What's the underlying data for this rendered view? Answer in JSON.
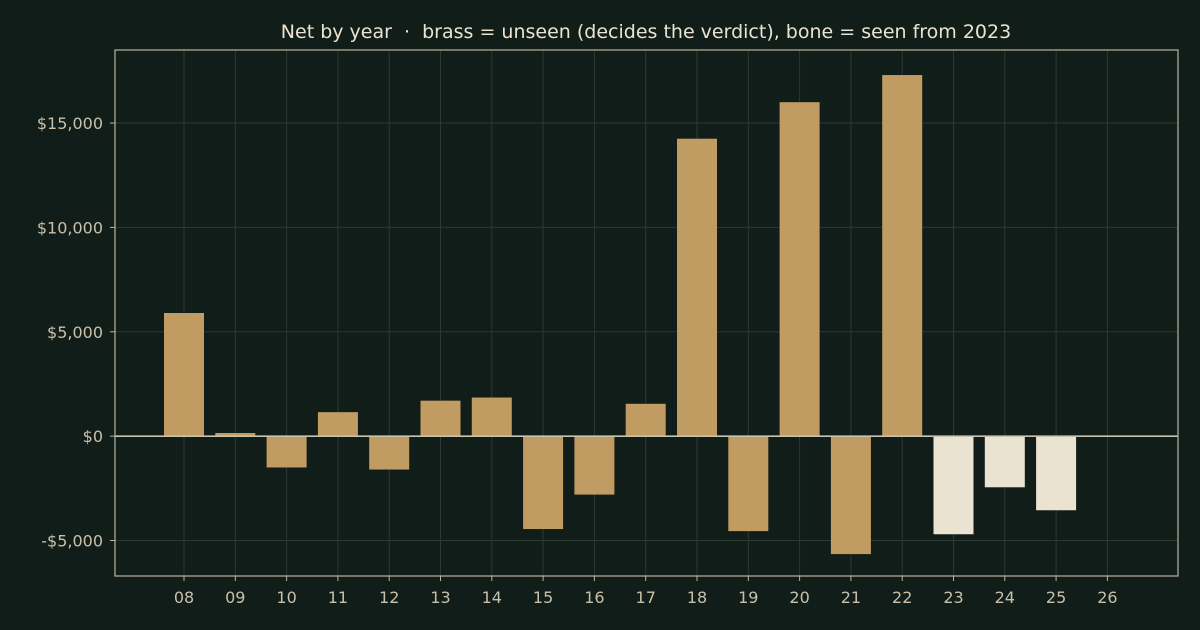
{
  "colors": {
    "background": "#111d18",
    "grid": "#2b3a32",
    "frame": "#b9b3a0",
    "zero_line": "#c8c2ae",
    "unseen_bar": "#c09c62",
    "seen_bar": "#ebe3d2",
    "text": "#ebe3d2",
    "tick_text": "#c9c0ab"
  },
  "chart_data": {
    "type": "bar",
    "title": "Net by year  ·  brass = unseen (decides the verdict), bone = seen from 2023",
    "xlabel": "",
    "ylabel": "",
    "categories": [
      "08",
      "09",
      "10",
      "11",
      "12",
      "13",
      "14",
      "15",
      "16",
      "17",
      "18",
      "19",
      "20",
      "21",
      "22",
      "23",
      "24",
      "25",
      "26"
    ],
    "values": [
      5900,
      150,
      -1500,
      1150,
      -1600,
      1700,
      1850,
      -4450,
      -2800,
      1550,
      14250,
      -4550,
      16000,
      -5650,
      17300,
      -4700,
      -2450,
      -3550,
      0
    ],
    "groups": [
      "unseen",
      "unseen",
      "unseen",
      "unseen",
      "unseen",
      "unseen",
      "unseen",
      "unseen",
      "unseen",
      "unseen",
      "unseen",
      "unseen",
      "unseen",
      "unseen",
      "unseen",
      "seen",
      "seen",
      "seen",
      "seen"
    ],
    "ylim": [
      -6700,
      18500
    ],
    "yticks": [
      -5000,
      0,
      5000,
      10000,
      15000
    ],
    "ytick_labels": [
      "-$5,000",
      "$0",
      "$5,000",
      "$10,000",
      "$15,000"
    ],
    "grid": true,
    "legend": "none"
  }
}
